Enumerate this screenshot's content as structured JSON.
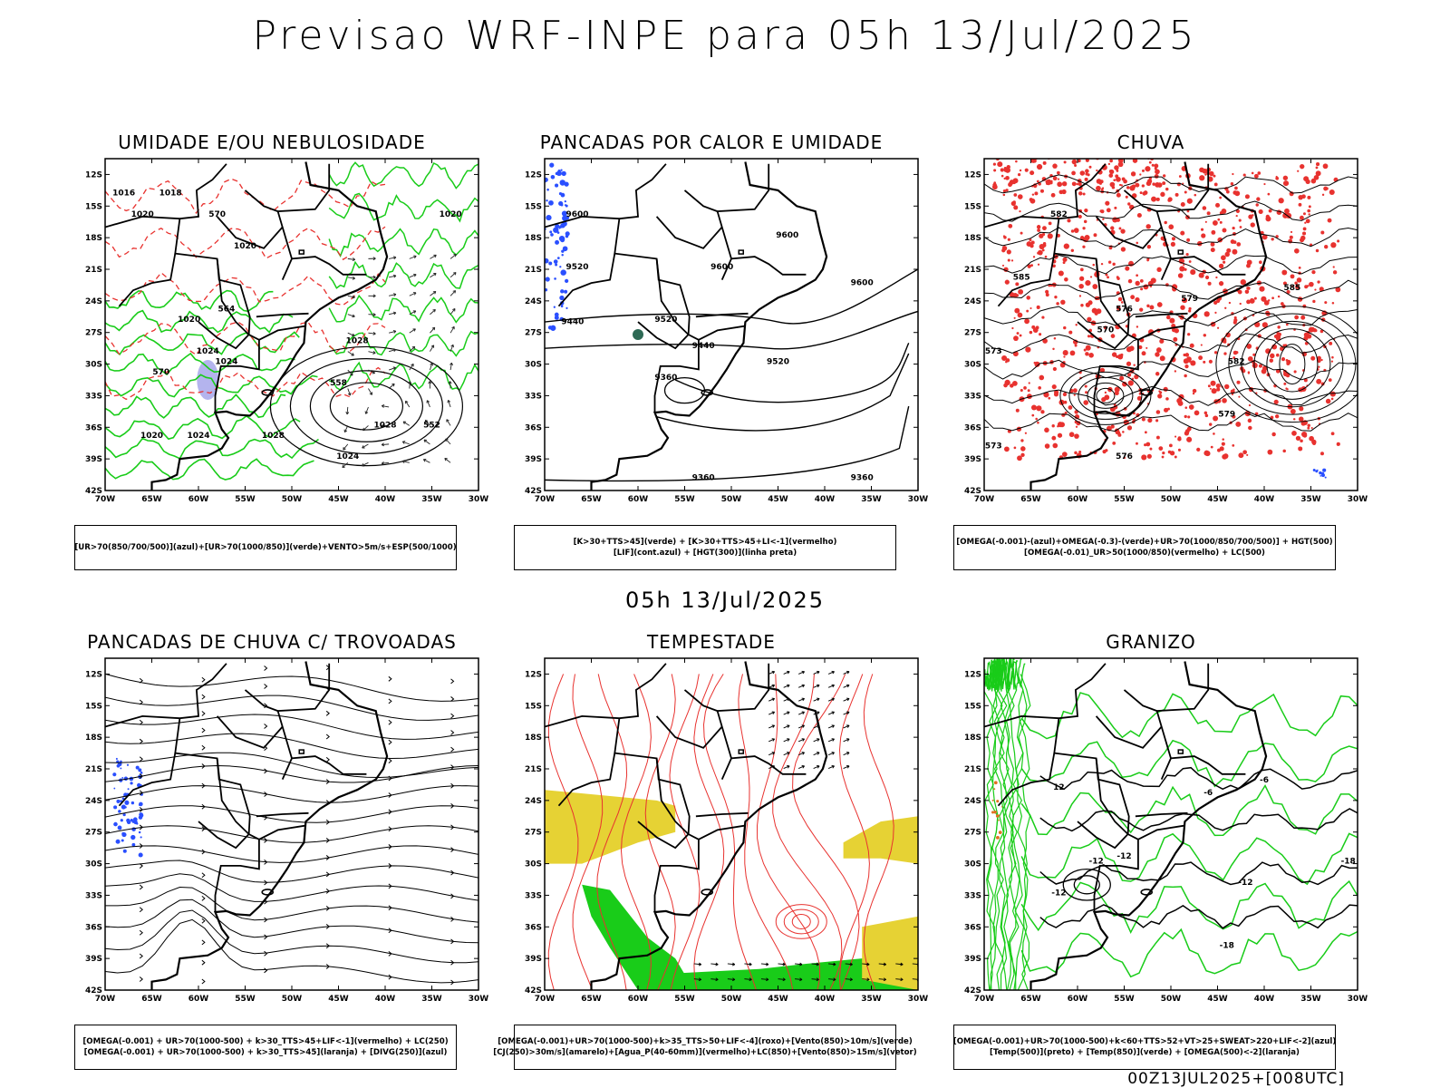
{
  "main_title": "Previsao WRF-INPE  para 05h 13/Jul/2025",
  "mid_title": "05h 13/Jul/2025",
  "footer": "00Z13JUL2025+[008UTC]",
  "axes": {
    "lat_labels": [
      "12S",
      "15S",
      "18S",
      "21S",
      "24S",
      "27S",
      "30S",
      "33S",
      "36S",
      "39S",
      "42S"
    ],
    "lon_labels": [
      "70W",
      "65W",
      "60W",
      "55W",
      "50W",
      "45W",
      "40W",
      "35W",
      "30W"
    ]
  },
  "colors": {
    "red": "#e8322f",
    "green": "#19cc19",
    "blue": "#2a4fff",
    "lavender": "#b4b4ee",
    "yellow": "#e6d234",
    "darkgreen": "#2e6a55",
    "black": "#000000"
  },
  "panels": [
    {
      "title": "UMIDADE E/OU NEBULOSIDADE",
      "legend": [
        "[UR>70(850/700/500)](azul)+[UR>70(1000/850)](verde)+VENTO>5m/s+ESP(500/1000)"
      ],
      "labels": [
        "1016",
        "1018",
        "1020",
        "1020",
        "1020",
        "1024",
        "1024",
        "1028",
        "1028",
        "1028",
        "1024",
        "1024",
        "1020",
        "1020",
        "570",
        "564",
        "558",
        "552",
        "570"
      ]
    },
    {
      "title": "PANCADAS POR CALOR E UMIDADE",
      "legend": [
        "[K>30+TTS>45](verde)  +  [K>30+TTS>45+LI<-1](vermelho)",
        "[LIF](cont.azul)  +  [HGT(300)](linha preta)"
      ],
      "labels": [
        "9600",
        "9600",
        "9520",
        "9440",
        "9360",
        "9600",
        "9600",
        "9520",
        "9440",
        "9520",
        "9360",
        "9360"
      ]
    },
    {
      "title": "CHUVA",
      "legend": [
        "[OMEGA(-0.001)-(azul)+OMEGA(-0.3)-(verde)+UR>70(1000/850/700/500)]  +  HGT(500)",
        "[OMEGA(-0.01)_UR>50(1000/850)(vermelho)  +  LC(500)"
      ],
      "labels": [
        "585",
        "582",
        "579",
        "576",
        "573",
        "570",
        "576",
        "579",
        "582",
        "585",
        "573"
      ]
    },
    {
      "title": "PANCADAS DE CHUVA C/ TROVOADAS",
      "legend": [
        "[OMEGA(-0.001)  +  UR>70(1000-500)  +  k>30_TTS>45+LIF<-1](vermelho)  +  LC(250)",
        "[OMEGA(-0.001)  +  UR>70(1000-500)  +  k>30_TTS>45](laranja)  +  [DIVG(250)](azul)"
      ],
      "labels": []
    },
    {
      "title": "TEMPESTADE",
      "legend": [
        "[OMEGA(-0.001)+UR>70(1000-500)+k>35_TTS>50+LIF<-4](roxo)+[Vento(850)>10m/s](verde)",
        "[CJ(250)>30m/s](amarelo)+[Agua_P(40-60mm)](vermelho)+LC(850)+[Vento(850)>15m/s](vetor)"
      ],
      "labels": []
    },
    {
      "title": "GRANIZO",
      "legend": [
        "[OMEGA(-0.001)+UR>70(1000-500)+k<60+TTS>52+VT>25+SWEAT>220+LIF<-2](azul)",
        "[Temp(500)](preto)  +  [Temp(850)](verde)  +  [OMEGA(500)<-2](laranja)"
      ],
      "labels": [
        "-6",
        "-6",
        "-12",
        "-12",
        "-12",
        "-18",
        "-18",
        "12",
        "-12"
      ]
    }
  ]
}
